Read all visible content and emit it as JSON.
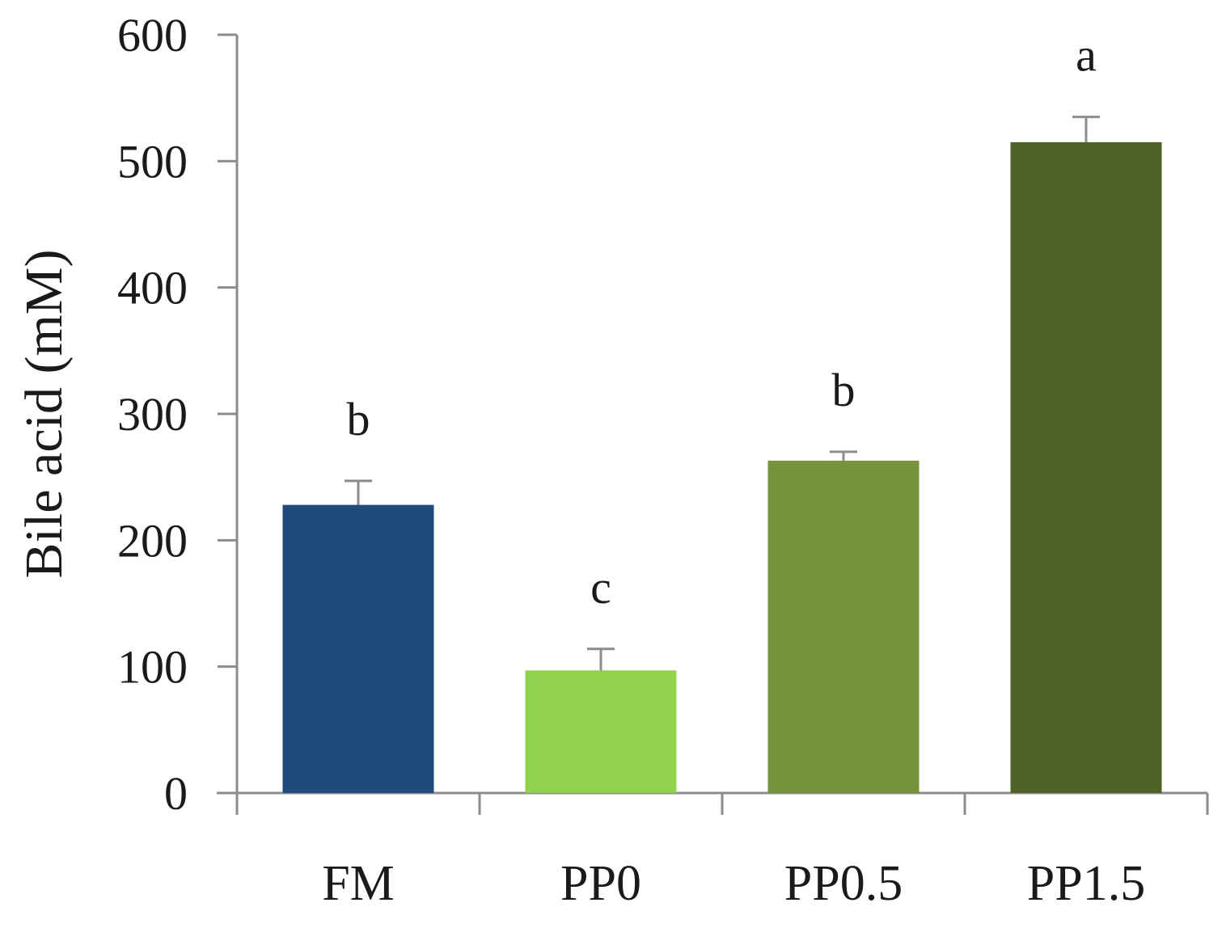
{
  "chart_data": {
    "type": "bar",
    "categories": [
      "FM",
      "PP0",
      "PP0.5",
      "PP1.5"
    ],
    "values": [
      228,
      97,
      263,
      515
    ],
    "errors": [
      19,
      17,
      7,
      20
    ],
    "significance": [
      "b",
      "c",
      "b",
      "a"
    ],
    "bar_colors": [
      "#204a7c",
      "#92d050",
      "#77933c",
      "#4f6228"
    ],
    "title": "",
    "xlabel": "",
    "ylabel": "Bile acid (mM)",
    "ylim": [
      0,
      600
    ],
    "yticks": [
      0,
      100,
      200,
      300,
      400,
      500,
      600
    ],
    "ytick_labels": [
      "0",
      "100",
      "200",
      "300",
      "400",
      "500",
      "600"
    ],
    "grid": false,
    "legend": "none"
  }
}
